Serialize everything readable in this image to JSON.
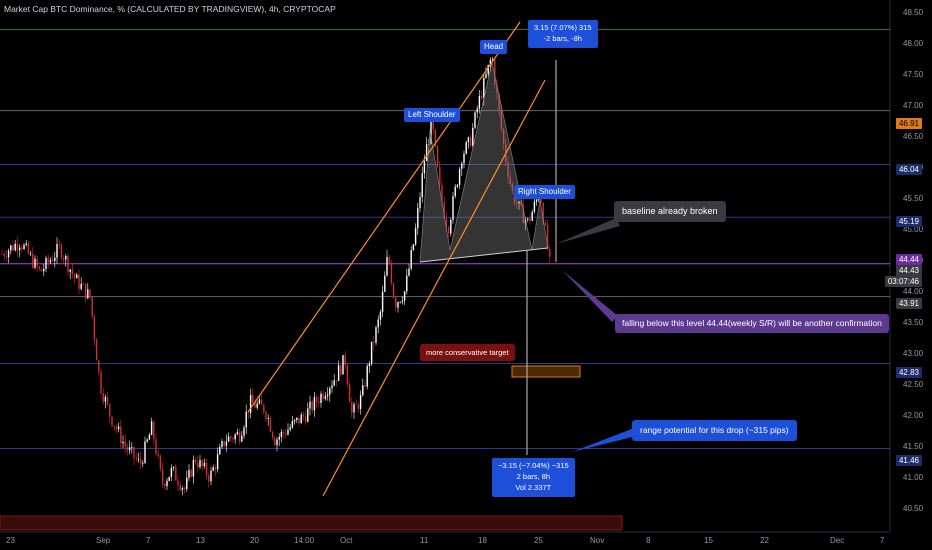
{
  "title": "Market Cap BTC Dominance, % (CALCULATED BY TRADINGVIEW), 4h, CRYPTOCAP",
  "price_axis": [
    "48.50",
    "48.00",
    "47.50",
    "47.00",
    "46.50",
    "46.00",
    "45.50",
    "45.00",
    "44.50",
    "44.00",
    "43.50",
    "43.00",
    "42.50",
    "42.00",
    "41.50",
    "41.00",
    "40.50"
  ],
  "time_axis": [
    "23",
    "Sep",
    "7",
    "13",
    "20",
    "14:00",
    "Oct",
    "11",
    "18",
    "25",
    "Nov",
    "8",
    "15",
    "22",
    "Dec",
    "7"
  ],
  "price_tags": {
    "tag_4691": "46.91",
    "tag_4604": "46.04",
    "tag_4519": "45.19",
    "tag_4444": "44.44",
    "tag_current": "44.43",
    "tag_countdown": "03:07:46",
    "tag_4391": "43.91",
    "tag_4283": "42.83",
    "tag_4146": "41.46"
  },
  "labels": {
    "left_shoulder": "Left Shoulder",
    "head": "Head",
    "right_shoulder": "Right Shoulder",
    "measure_up_line1": "3.15 (7.07%) 315",
    "measure_up_line2": "-2 bars, -8h",
    "measure_down_line1": "−3.15 (−7.04%) −315",
    "measure_down_line2": "2 bars, 8h",
    "measure_down_line3": "Vol 2.337T",
    "baseline_note": "baseline already broken",
    "falling_note": "falling below this level 44.44(weekly S/R) will be another confirmation",
    "conservative_target": "more conservative target",
    "range_note": "range potential for this drop (~315 pips)"
  },
  "colors": {
    "background": "#000000",
    "up": "#ffffff",
    "down": "#d32f2f",
    "channel": "#ff8c2a",
    "hline_blue": "#2a3a8f",
    "hline_green": "#3a7d2a",
    "hline_purple": "#a64dd6",
    "label_blue": "#1d4fd8"
  },
  "chart_data": {
    "type": "candlestick",
    "series_name": "Market Cap BTC Dominance, %",
    "ylim": [
      40.4,
      48.6
    ],
    "price_levels": [
      46.91,
      46.04,
      45.19,
      44.44,
      43.91,
      42.83,
      41.46
    ],
    "current_price": 44.43,
    "key_points": [
      {
        "name": "Left Shoulder",
        "price": 46.6
      },
      {
        "name": "Head",
        "price": 47.7
      },
      {
        "name": "Right Shoulder",
        "price": 45.6
      },
      {
        "name": "Neckline (approx)",
        "price": 44.9
      }
    ]
  }
}
